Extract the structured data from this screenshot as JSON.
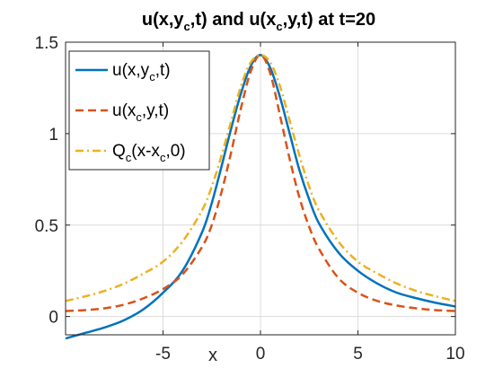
{
  "chart_data": {
    "type": "line",
    "title": {
      "main": "u(x,y",
      "sub": "c",
      "main2": ",t) and u(x",
      "sub2": "c",
      "main3": ",y,t) at t=20"
    },
    "xlabel": "x",
    "ylabel": "",
    "xlim": [
      -10,
      10
    ],
    "ylim": [
      -0.1,
      1.5
    ],
    "xticks": [
      -5,
      0,
      5,
      10
    ],
    "xtick_labels": [
      "-5",
      "0",
      "5",
      "10"
    ],
    "yticks": [
      0,
      0.5,
      1,
      1.5
    ],
    "ytick_labels": [
      "0",
      "0.5",
      "1",
      "1.5"
    ],
    "grid": true,
    "legend_position": "top-left",
    "series": [
      {
        "name": "u(x,y_c,t)",
        "legend": {
          "a": "u(x,y",
          "sub": "c",
          "b": ",t)"
        },
        "color": "#0072BD",
        "style": "solid",
        "x": [
          -10,
          -9,
          -8,
          -7,
          -6,
          -5,
          -4,
          -3,
          -2.5,
          -2,
          -1.5,
          -1,
          -0.5,
          0,
          0.5,
          1,
          1.5,
          2,
          2.5,
          3,
          4,
          5,
          6,
          7,
          8,
          9,
          10
        ],
        "y": [
          -0.12,
          -0.09,
          -0.06,
          -0.02,
          0.04,
          0.13,
          0.25,
          0.46,
          0.62,
          0.82,
          1.03,
          1.22,
          1.37,
          1.43,
          1.36,
          1.2,
          1.0,
          0.8,
          0.64,
          0.51,
          0.35,
          0.25,
          0.18,
          0.13,
          0.1,
          0.075,
          0.055
        ]
      },
      {
        "name": "u(x_c,y,t)",
        "legend": {
          "a": "u(x",
          "sub": "c",
          "b": ",y,t)"
        },
        "color": "#D95319",
        "style": "dashed",
        "x": [
          -10,
          -9,
          -8,
          -7,
          -6,
          -5,
          -4,
          -3,
          -2.5,
          -2,
          -1.5,
          -1,
          -0.5,
          0,
          0.5,
          1,
          1.5,
          2,
          2.5,
          3,
          4,
          5,
          6,
          7,
          8,
          9,
          10
        ],
        "y": [
          0.03,
          0.035,
          0.045,
          0.065,
          0.1,
          0.15,
          0.23,
          0.38,
          0.5,
          0.68,
          0.9,
          1.14,
          1.34,
          1.43,
          1.33,
          1.1,
          0.86,
          0.65,
          0.49,
          0.37,
          0.21,
          0.13,
          0.085,
          0.06,
          0.045,
          0.035,
          0.03
        ]
      },
      {
        "name": "Q_c(x-x_c,0)",
        "legend": {
          "a": "Q",
          "sub": "c",
          "b": "(x-x",
          "sub2": "c",
          "c": ",0)"
        },
        "color": "#EDB120",
        "style": "dashdot",
        "x": [
          -10,
          -9,
          -8,
          -7,
          -6,
          -5,
          -4,
          -3,
          -2.5,
          -2,
          -1.5,
          -1,
          -0.5,
          0,
          0.5,
          1,
          1.5,
          2,
          2.5,
          3,
          4,
          5,
          6,
          7,
          8,
          9,
          10
        ],
        "y": [
          0.085,
          0.11,
          0.14,
          0.18,
          0.235,
          0.3,
          0.41,
          0.58,
          0.71,
          0.88,
          1.07,
          1.26,
          1.39,
          1.43,
          1.39,
          1.26,
          1.07,
          0.88,
          0.71,
          0.58,
          0.41,
          0.3,
          0.235,
          0.18,
          0.14,
          0.11,
          0.085
        ]
      }
    ]
  }
}
